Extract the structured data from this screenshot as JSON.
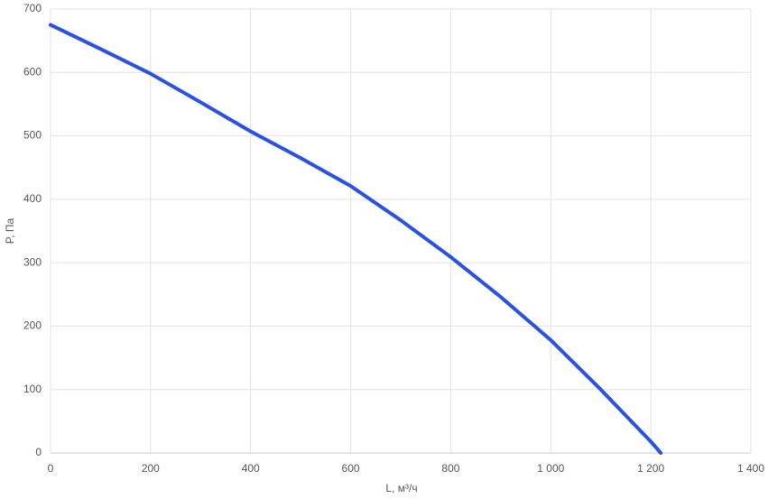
{
  "chart_data": {
    "type": "line",
    "x_label": "L, м³/ч",
    "y_label": "P, Па",
    "x": [
      0,
      100,
      200,
      300,
      400,
      500,
      600,
      700,
      800,
      900,
      1000,
      1100,
      1200,
      1220
    ],
    "values": [
      675,
      637,
      598,
      553,
      507,
      465,
      421,
      367,
      309,
      246,
      178,
      100,
      18,
      0
    ],
    "color": "#2b50e6",
    "xlim": [
      0,
      1400
    ],
    "xticks": [
      0,
      200,
      400,
      600,
      800,
      {
        "value": 1000,
        "label": "1 000"
      },
      {
        "value": 1200,
        "label": "1 200"
      },
      {
        "value": 1400,
        "label": "1 400"
      }
    ],
    "ylim": [
      0,
      700
    ],
    "yticks": [
      0,
      100,
      200,
      300,
      400,
      500,
      600,
      700
    ],
    "grid": true
  }
}
